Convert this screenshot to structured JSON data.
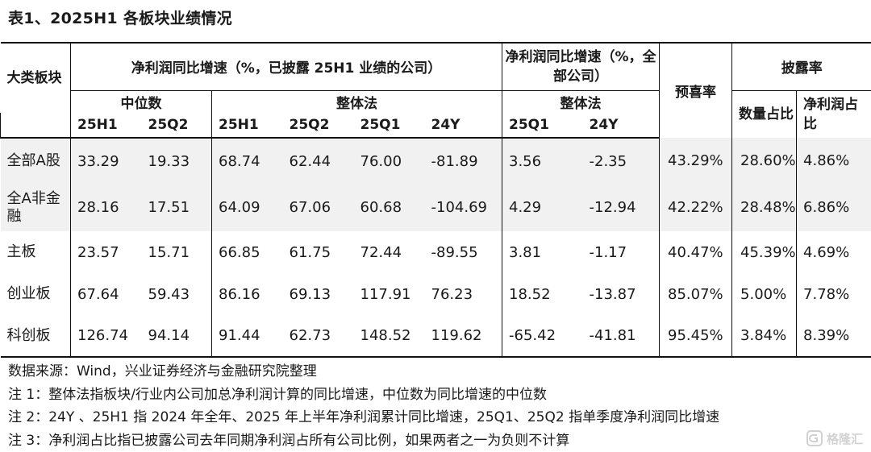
{
  "title": "表1、2025H1 各板块业绩情况",
  "header": {
    "category": "大类板块",
    "group_profit_growth_disclosed": "净利润同比增速（%，已披露 25H1 业绩的公司）",
    "group_profit_growth_all": "净利润同比增速（%，全部公司）",
    "prelim_rate": "预喜率",
    "disclosure_rate": "披露率",
    "median": "中位数",
    "overall": "整体法",
    "overall_all": "整体法",
    "quantity_share": "数量占比",
    "profit_share": "净利润占比",
    "periods": {
      "median_25h1": "25H1",
      "median_25q2": "25Q2",
      "overall_25h1": "25H1",
      "overall_25q2": "25Q2",
      "overall_25q1": "25Q1",
      "overall_24y": "24Y",
      "all_25q1": "25Q1",
      "all_24y": "24Y"
    }
  },
  "rows": [
    {
      "name": "全部A股",
      "median_25h1": "33.29",
      "median_25q2": "19.33",
      "overall_25h1": "68.74",
      "overall_25q2": "62.44",
      "overall_25q1": "76.00",
      "overall_24y": "-81.89",
      "all_25q1": "3.56",
      "all_24y": "-2.35",
      "prelim_rate": "43.29%",
      "quantity_share": "28.60%",
      "profit_share": "4.86%"
    },
    {
      "name": "全A非金融",
      "median_25h1": "28.16",
      "median_25q2": "17.51",
      "overall_25h1": "64.09",
      "overall_25q2": "67.06",
      "overall_25q1": "60.68",
      "overall_24y": "-104.69",
      "all_25q1": "4.29",
      "all_24y": "-12.94",
      "prelim_rate": "42.22%",
      "quantity_share": "28.48%",
      "profit_share": "6.86%"
    },
    {
      "name": "主板",
      "median_25h1": "23.57",
      "median_25q2": "15.71",
      "overall_25h1": "66.85",
      "overall_25q2": "61.75",
      "overall_25q1": "72.44",
      "overall_24y": "-89.55",
      "all_25q1": "3.81",
      "all_24y": "-1.17",
      "prelim_rate": "40.47%",
      "quantity_share": "45.39%",
      "profit_share": "4.69%"
    },
    {
      "name": "创业板",
      "median_25h1": "67.64",
      "median_25q2": "59.43",
      "overall_25h1": "86.16",
      "overall_25q2": "69.13",
      "overall_25q1": "117.91",
      "overall_24y": "76.23",
      "all_25q1": "18.52",
      "all_24y": "-13.87",
      "prelim_rate": "85.07%",
      "quantity_share": "5.00%",
      "profit_share": "7.78%"
    },
    {
      "name": "科创板",
      "median_25h1": "126.74",
      "median_25q2": "94.14",
      "overall_25h1": "91.44",
      "overall_25q2": "62.73",
      "overall_25q1": "148.52",
      "overall_24y": "119.62",
      "all_25q1": "-65.42",
      "all_24y": "-41.81",
      "prelim_rate": "95.45%",
      "quantity_share": "3.84%",
      "profit_share": "8.39%"
    }
  ],
  "notes": [
    "数据来源：Wind，兴业证券经济与金融研究院整理",
    "注 1：整体法指板块/行业内公司加总净利润计算的同比增速，中位数为同比增速的中位数",
    "注 2：24Y 、25H1 指 2024 年全年、2025 年上半年净利润累计同比增速，25Q1、25Q2 指单季度净利润同比增速",
    "注 3：净利润占比指已披露公司去年同期净利润占所有公司比例，如果两者之一为负则不计算"
  ],
  "watermark": {
    "text": "格隆汇",
    "icon": "watermark-logo-icon"
  }
}
